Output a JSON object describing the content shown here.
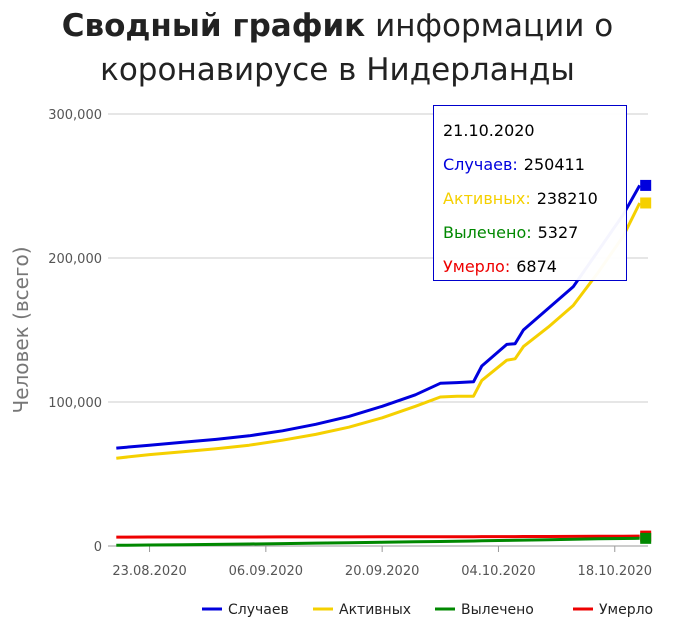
{
  "title": {
    "bold": "Сводный график",
    "rest": "информации о коронавирусе в Нидерланды"
  },
  "chart_data": {
    "type": "line",
    "ylabel": "Человек (всего)",
    "ylim": [
      0,
      300000
    ],
    "yticks": [
      0,
      100000,
      200000,
      300000
    ],
    "ytick_labels": [
      "0",
      "100,000",
      "200,000",
      "300,000"
    ],
    "xlim": [
      "2020-08-18",
      "2020-10-22"
    ],
    "xticks": [
      "2020-08-23",
      "2020-09-06",
      "2020-09-20",
      "2020-10-04",
      "2020-10-18"
    ],
    "xtick_labels": [
      "23.08.2020",
      "06.09.2020",
      "20.09.2020",
      "04.10.2020",
      "18.10.2020"
    ],
    "grid": true,
    "legend": "bottom-right",
    "x": [
      "2020-08-19",
      "2020-08-23",
      "2020-08-27",
      "2020-08-31",
      "2020-09-04",
      "2020-09-08",
      "2020-09-12",
      "2020-09-16",
      "2020-09-20",
      "2020-09-24",
      "2020-09-27",
      "2020-09-29",
      "2020-10-01",
      "2020-10-02",
      "2020-10-05",
      "2020-10-06",
      "2020-10-07",
      "2020-10-10",
      "2020-10-13",
      "2020-10-16",
      "2020-10-19",
      "2020-10-21"
    ],
    "series": [
      {
        "name": "Случаев",
        "color": "#0000dd",
        "values": [
          68000,
          70000,
          72000,
          74000,
          76500,
          80000,
          84500,
          90000,
          97000,
          105000,
          113000,
          113500,
          114000,
          125000,
          140000,
          140500,
          150000,
          165000,
          180000,
          205000,
          230000,
          250411
        ]
      },
      {
        "name": "Активных",
        "color": "#f5d000",
        "values": [
          61000,
          63500,
          65500,
          67500,
          70000,
          73500,
          77500,
          82500,
          89000,
          97000,
          103500,
          104000,
          104000,
          115000,
          129000,
          130000,
          138500,
          152000,
          167000,
          190000,
          215000,
          238210
        ]
      },
      {
        "name": "Вылечено",
        "color": "#008800",
        "values": [
          500,
          700,
          900,
          1100,
          1400,
          1700,
          2000,
          2300,
          2600,
          2900,
          3100,
          3300,
          3450,
          3600,
          3900,
          4000,
          4100,
          4400,
          4700,
          5000,
          5200,
          5327
        ]
      },
      {
        "name": "Умерло",
        "color": "#ee0000",
        "values": [
          6200,
          6220,
          6240,
          6260,
          6280,
          6300,
          6320,
          6340,
          6360,
          6400,
          6420,
          6450,
          6470,
          6500,
          6530,
          6550,
          6570,
          6610,
          6660,
          6740,
          6810,
          6874
        ]
      }
    ]
  },
  "tooltip": {
    "date": "21.10.2020",
    "rows": [
      {
        "label": "Случаев:",
        "value": "250411",
        "color": "#0000dd"
      },
      {
        "label": "Активных:",
        "value": "238210",
        "color": "#f5d000"
      },
      {
        "label": "Вылечено:",
        "value": "5327",
        "color": "#008800"
      },
      {
        "label": "Умерло:",
        "value": "6874",
        "color": "#ee0000"
      }
    ]
  }
}
